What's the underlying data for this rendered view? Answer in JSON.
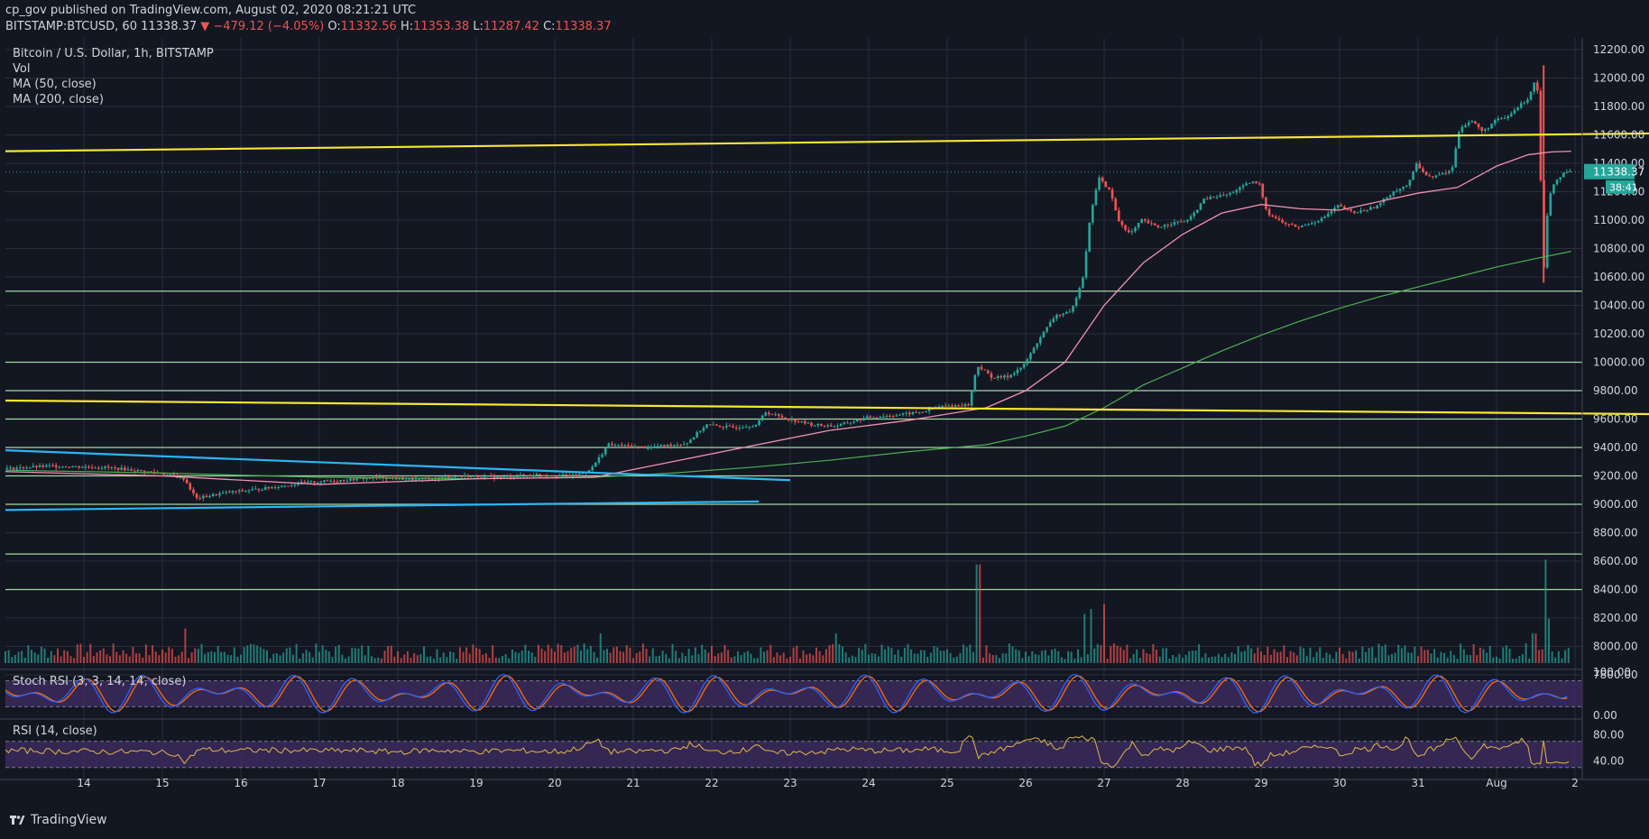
{
  "header": {
    "text": "cp_gov published on TradingView.com, August 02, 2020 08:21:21 UTC"
  },
  "ohlc": {
    "symbol": "BITSTAMP:BTCUSD, 60",
    "last": "11338.37",
    "change": "▼ −479.12 (−4.05%)",
    "o_label": "O:",
    "o": "11332.56",
    "h_label": "H:",
    "h": "11353.38",
    "l_label": "L:",
    "l": "11287.42",
    "c_label": "C:",
    "c": "11338.37"
  },
  "legend": {
    "title": "Bitcoin / U.S. Dollar, 1h, BITSTAMP",
    "vol": "Vol",
    "ma50": "MA (50, close)",
    "ma200": "MA (200, close)"
  },
  "price_badge": {
    "value": "11338.37",
    "countdown": "38:41"
  },
  "stoch_label": "Stoch RSI (3, 3, 14, 14, close)",
  "rsi_label": "RSI (14, close)",
  "footer": {
    "brand": "TradingView"
  },
  "colors": {
    "background": "#131722",
    "up": "#26a69a",
    "down": "#ef5350",
    "yellow_line": "#f7e733",
    "cyan_line": "#29b6f6",
    "green_level": "#a5d6a7",
    "ma50": "#f48fb1",
    "ma200": "#4caf50",
    "stoch_k": "#2962ff",
    "stoch_d": "#ff6d00",
    "rsi": "#e0b84a",
    "indicator_band": "#3c2a5c"
  },
  "chart_data": [
    {
      "type": "candlestick",
      "x_ticks": [
        "14",
        "15",
        "16",
        "17",
        "18",
        "19",
        "20",
        "21",
        "22",
        "23",
        "24",
        "25",
        "26",
        "27",
        "28",
        "29",
        "30",
        "31",
        "Aug",
        "2"
      ],
      "y_ticks": [
        "12200.00",
        "12000.00",
        "11800.00",
        "11600.00",
        "11400.00",
        "11200.00",
        "11000.00",
        "10800.00",
        "10600.00",
        "10400.00",
        "10200.00",
        "10000.00",
        "9800.00",
        "9600.00",
        "9400.00",
        "9200.00",
        "9000.00",
        "8800.00",
        "8600.00",
        "8400.00",
        "8200.00",
        "8000.00",
        "7800.00"
      ],
      "ylim": [
        7800,
        12200
      ],
      "x_range_days": [
        13.0,
        2.95
      ],
      "last_price": 11338.37,
      "trend_path": [
        [
          13.0,
          9250
        ],
        [
          13.6,
          9270
        ],
        [
          14.3,
          9260
        ],
        [
          15.0,
          9220
        ],
        [
          15.3,
          9180
        ],
        [
          15.45,
          9040
        ],
        [
          15.8,
          9080
        ],
        [
          16.3,
          9110
        ],
        [
          16.8,
          9150
        ],
        [
          17.3,
          9170
        ],
        [
          17.8,
          9190
        ],
        [
          18.3,
          9170
        ],
        [
          18.8,
          9200
        ],
        [
          19.3,
          9190
        ],
        [
          19.8,
          9210
        ],
        [
          20.3,
          9200
        ],
        [
          20.5,
          9260
        ],
        [
          20.6,
          9340
        ],
        [
          20.7,
          9420
        ],
        [
          21.2,
          9400
        ],
        [
          21.7,
          9430
        ],
        [
          21.95,
          9560
        ],
        [
          22.3,
          9540
        ],
        [
          22.6,
          9560
        ],
        [
          22.7,
          9650
        ],
        [
          23.0,
          9600
        ],
        [
          23.3,
          9560
        ],
        [
          23.6,
          9550
        ],
        [
          24.0,
          9610
        ],
        [
          24.4,
          9630
        ],
        [
          24.7,
          9650
        ],
        [
          24.95,
          9690
        ],
        [
          25.3,
          9700
        ],
        [
          25.4,
          9980
        ],
        [
          25.6,
          9890
        ],
        [
          25.8,
          9900
        ],
        [
          26.0,
          9980
        ],
        [
          26.2,
          10170
        ],
        [
          26.4,
          10330
        ],
        [
          26.6,
          10350
        ],
        [
          26.75,
          10600
        ],
        [
          26.85,
          11050
        ],
        [
          26.95,
          11300
        ],
        [
          27.1,
          11200
        ],
        [
          27.2,
          11000
        ],
        [
          27.35,
          10900
        ],
        [
          27.5,
          11000
        ],
        [
          27.7,
          10950
        ],
        [
          27.9,
          10980
        ],
        [
          28.1,
          11000
        ],
        [
          28.3,
          11150
        ],
        [
          28.6,
          11180
        ],
        [
          28.9,
          11270
        ],
        [
          29.0,
          11250
        ],
        [
          29.1,
          11050
        ],
        [
          29.3,
          10980
        ],
        [
          29.5,
          10950
        ],
        [
          29.8,
          11010
        ],
        [
          30.0,
          11100
        ],
        [
          30.2,
          11050
        ],
        [
          30.4,
          11080
        ],
        [
          30.5,
          11100
        ],
        [
          30.7,
          11200
        ],
        [
          30.9,
          11250
        ],
        [
          31.0,
          11400
        ],
        [
          31.15,
          11300
        ],
        [
          31.3,
          11320
        ],
        [
          31.45,
          11350
        ],
        [
          31.55,
          11650
        ],
        [
          31.7,
          11700
        ],
        [
          31.85,
          11620
        ],
        [
          32.0,
          11700
        ],
        [
          32.15,
          11720
        ],
        [
          32.3,
          11800
        ],
        [
          32.45,
          11870
        ],
        [
          32.48,
          12000
        ],
        [
          32.55,
          11900
        ],
        [
          32.62,
          10620
        ],
        [
          32.68,
          11150
        ],
        [
          32.75,
          11260
        ],
        [
          32.85,
          11320
        ],
        [
          32.95,
          11338
        ]
      ],
      "ma50_path": [
        [
          13.0,
          9230
        ],
        [
          15.0,
          9200
        ],
        [
          17.0,
          9140
        ],
        [
          19.0,
          9180
        ],
        [
          20.5,
          9190
        ],
        [
          21.5,
          9300
        ],
        [
          22.5,
          9410
        ],
        [
          23.5,
          9520
        ],
        [
          24.5,
          9590
        ],
        [
          25.5,
          9680
        ],
        [
          26.0,
          9800
        ],
        [
          26.5,
          10000
        ],
        [
          27.0,
          10400
        ],
        [
          27.5,
          10700
        ],
        [
          28.0,
          10900
        ],
        [
          28.5,
          11050
        ],
        [
          29.0,
          11110
        ],
        [
          29.5,
          11080
        ],
        [
          30.0,
          11070
        ],
        [
          30.5,
          11130
        ],
        [
          31.0,
          11190
        ],
        [
          31.5,
          11230
        ],
        [
          32.0,
          11380
        ],
        [
          32.4,
          11460
        ],
        [
          32.7,
          11480
        ],
        [
          32.95,
          11485
        ]
      ],
      "ma200_path": [
        [
          13.0,
          9240
        ],
        [
          15.0,
          9220
        ],
        [
          17.0,
          9190
        ],
        [
          19.0,
          9180
        ],
        [
          20.5,
          9190
        ],
        [
          21.5,
          9220
        ],
        [
          22.5,
          9260
        ],
        [
          23.5,
          9310
        ],
        [
          24.5,
          9370
        ],
        [
          25.5,
          9420
        ],
        [
          26.0,
          9480
        ],
        [
          26.5,
          9550
        ],
        [
          27.0,
          9680
        ],
        [
          27.5,
          9840
        ],
        [
          28.0,
          9960
        ],
        [
          28.5,
          10080
        ],
        [
          29.0,
          10190
        ],
        [
          29.5,
          10290
        ],
        [
          30.0,
          10380
        ],
        [
          30.5,
          10460
        ],
        [
          31.0,
          10530
        ],
        [
          31.5,
          10600
        ],
        [
          32.0,
          10670
        ],
        [
          32.5,
          10730
        ],
        [
          32.95,
          10780
        ]
      ],
      "yellow_lines": [
        [
          [
            13.0,
            11485
          ],
          [
            33.95,
            11610
          ]
        ],
        [
          [
            13.0,
            9730
          ],
          [
            33.95,
            9635
          ]
        ]
      ],
      "cyan_lines": [
        [
          [
            13.0,
            9380
          ],
          [
            23.0,
            9170
          ]
        ],
        [
          [
            13.0,
            8960
          ],
          [
            22.6,
            9020
          ]
        ]
      ],
      "horizontal_levels": [
        10500,
        10000,
        9800,
        9600,
        9400,
        9200,
        9000,
        8650,
        8400
      ]
    },
    {
      "type": "bar",
      "series": "volume",
      "spikes_days": [
        15.3,
        20.6,
        23.6,
        25.4,
        26.75,
        26.85,
        27.0,
        32.48,
        32.62,
        32.68
      ],
      "spike_heights": [
        0.35,
        0.3,
        0.3,
        1.0,
        0.5,
        0.55,
        0.6,
        0.3,
        1.05,
        0.45
      ]
    },
    {
      "type": "line",
      "name": "Stoch RSI (3, 3, 14, 14, close)",
      "y_ticks": [
        "100.00",
        "0.00"
      ],
      "ylim": [
        0,
        100
      ],
      "bands": [
        80,
        20
      ]
    },
    {
      "type": "line",
      "name": "RSI (14, close)",
      "y_ticks": [
        "80.00",
        "40.00"
      ],
      "ylim": [
        0,
        100
      ],
      "bands": [
        70,
        30
      ]
    }
  ]
}
